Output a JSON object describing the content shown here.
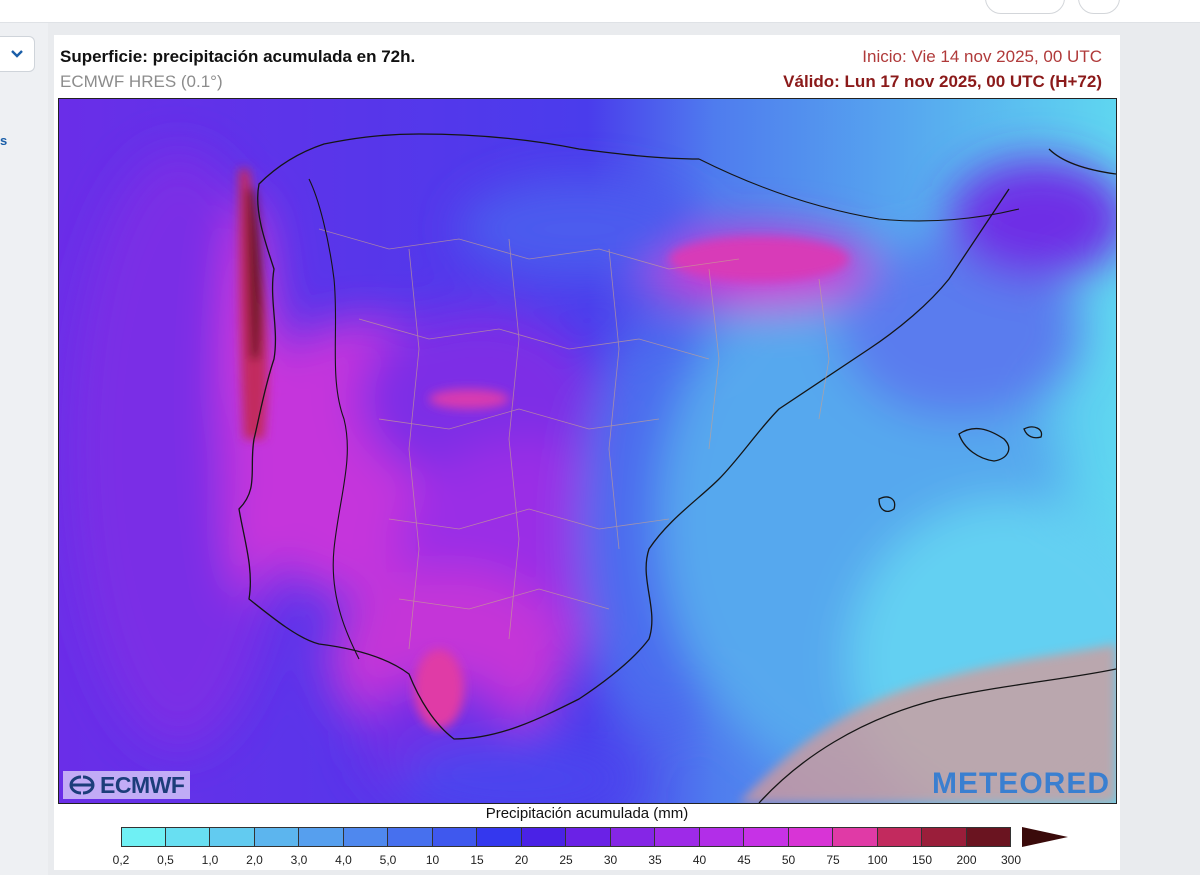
{
  "header": {
    "title": "Superficie: precipitación acumulada en 72h.",
    "model": "ECMWF HRES (0.1°)",
    "init": "Inicio: Vie 14 nov 2025, 00 UTC",
    "valid": "Válido: Lun 17 nov 2025, 00 UTC (H+72)"
  },
  "sidebar": {
    "link_fragment": "s",
    "dropdown_icon": "chevron-down-icon"
  },
  "map": {
    "logo_left": "ECMWF",
    "logo_right": "METEORED",
    "region": "Península Ibérica"
  },
  "legend": {
    "title": "Precipitación acumulada (mm)",
    "ticks": [
      "0,2",
      "0,5",
      "1,0",
      "2,0",
      "3,0",
      "4,0",
      "5,0",
      "10",
      "15",
      "20",
      "25",
      "30",
      "35",
      "40",
      "45",
      "50",
      "75",
      "100",
      "150",
      "200",
      "300"
    ],
    "colors": [
      "#6ff0f4",
      "#68dff2",
      "#62cbf0",
      "#5cb5ee",
      "#569fee",
      "#4f88ee",
      "#4770ee",
      "#3f58ee",
      "#3438ee",
      "#4a22e6",
      "#6a22e6",
      "#8526e6",
      "#9e2ae8",
      "#b22ee8",
      "#c632e6",
      "#d834d6",
      "#e03aa6",
      "#c22a5e",
      "#9a1e3a",
      "#6a1420",
      "#3a0a0a"
    ]
  }
}
